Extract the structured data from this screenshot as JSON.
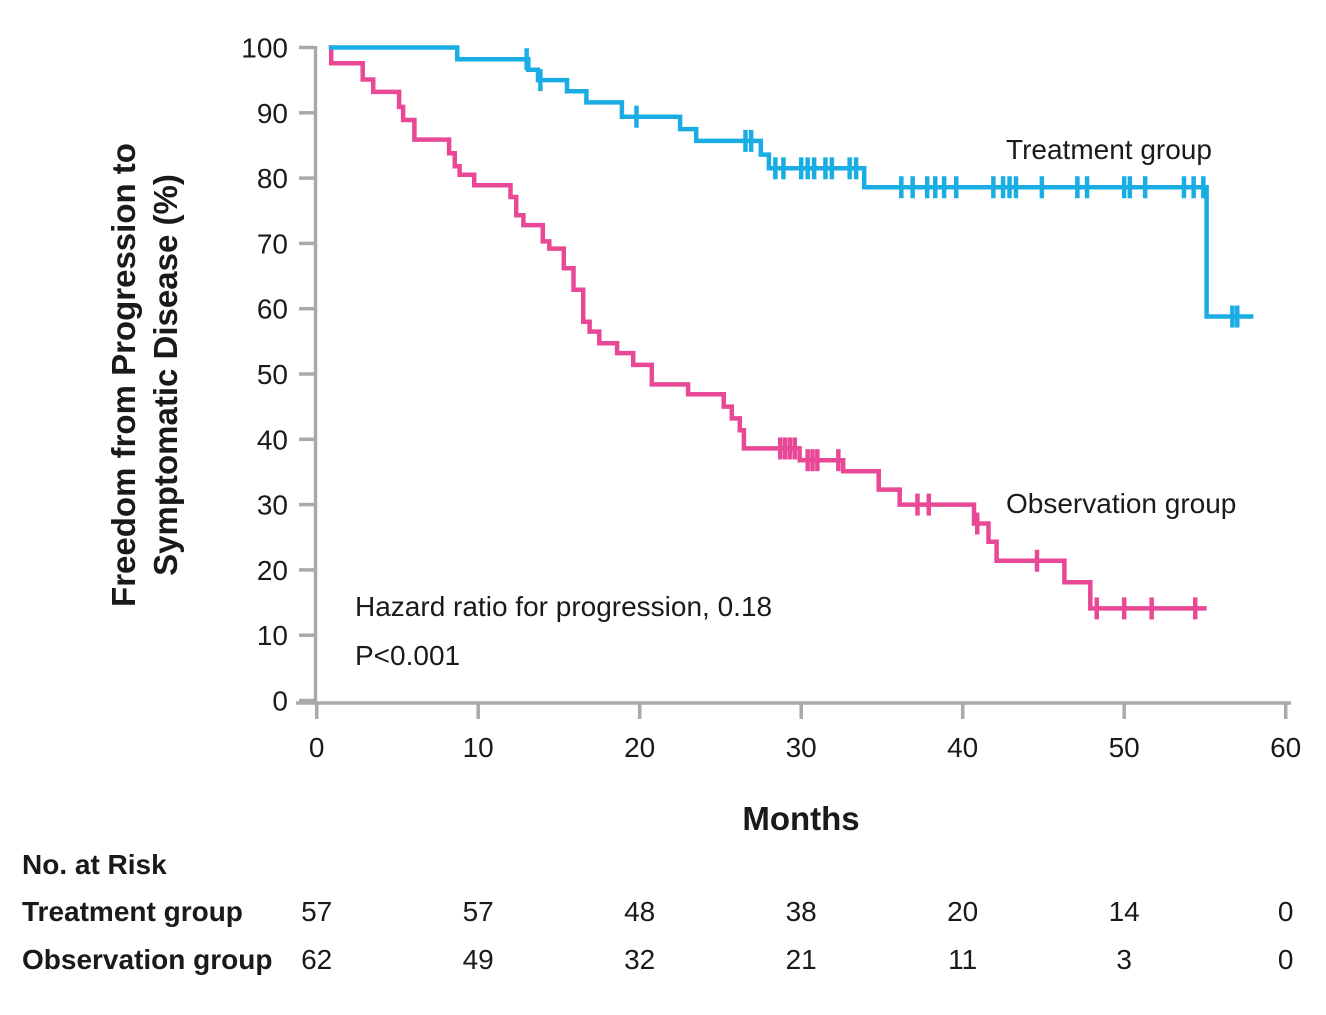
{
  "figure": {
    "y_axis_label": [
      "Freedom from Progression to",
      "Symptomatic Disease (%)"
    ],
    "x_axis_label": "Months",
    "annotations": {
      "hazard_ratio": "Hazard ratio for progression, 0.18",
      "p_value": "P<0.001"
    }
  },
  "chart_data": {
    "type": "line",
    "subtype": "kaplan-meier-step",
    "xlabel": "Months",
    "ylabel": "Freedom from Progression to Symptomatic Disease (%)",
    "xlim": [
      0,
      60
    ],
    "ylim": [
      0,
      100
    ],
    "x_ticks": [
      0,
      10,
      20,
      30,
      40,
      50,
      60
    ],
    "y_ticks": [
      0,
      10,
      20,
      30,
      40,
      50,
      60,
      70,
      80,
      90,
      100
    ],
    "grid": false,
    "legend_position": "inline-labels",
    "series": [
      {
        "name": "Treatment group",
        "color": "#19ade4",
        "points": [
          [
            0.75,
            100
          ],
          [
            8.7,
            98.2
          ],
          [
            13.1,
            96.6
          ],
          [
            13.7,
            95.0
          ],
          [
            15.5,
            93.3
          ],
          [
            16.7,
            91.6
          ],
          [
            18.9,
            89.4
          ],
          [
            22.5,
            87.5
          ],
          [
            23.5,
            85.7
          ],
          [
            27.5,
            83.6
          ],
          [
            28.0,
            81.5
          ],
          [
            33.9,
            78.6
          ],
          [
            55.1,
            58.8
          ]
        ],
        "end_month": 58.0,
        "censor_months": [
          13.0,
          13.85,
          19.8,
          26.55,
          26.9,
          28.4,
          28.9,
          30.0,
          30.4,
          30.8,
          31.5,
          31.9,
          33.0,
          33.4,
          36.2,
          36.9,
          37.8,
          38.3,
          38.85,
          39.6,
          41.9,
          42.5,
          42.9,
          43.3,
          44.9,
          47.1,
          47.7,
          50.0,
          50.35,
          51.3,
          53.7,
          54.3,
          54.9,
          56.7,
          57.0
        ]
      },
      {
        "name": "Observation group",
        "color": "#e84895",
        "points": [
          [
            0.75,
            100
          ],
          [
            0.9,
            97.6
          ],
          [
            2.85,
            95.1
          ],
          [
            3.5,
            93.2
          ],
          [
            5.1,
            90.9
          ],
          [
            5.35,
            88.9
          ],
          [
            6.05,
            85.9
          ],
          [
            8.2,
            83.8
          ],
          [
            8.55,
            81.8
          ],
          [
            8.85,
            80.5
          ],
          [
            9.75,
            78.9
          ],
          [
            12.0,
            77.1
          ],
          [
            12.35,
            74.3
          ],
          [
            12.8,
            72.8
          ],
          [
            14.0,
            70.3
          ],
          [
            14.4,
            69.2
          ],
          [
            15.3,
            66.2
          ],
          [
            15.9,
            62.9
          ],
          [
            16.5,
            58.0
          ],
          [
            16.9,
            56.5
          ],
          [
            17.5,
            54.7
          ],
          [
            18.6,
            53.2
          ],
          [
            19.6,
            51.4
          ],
          [
            20.75,
            48.4
          ],
          [
            23.0,
            46.9
          ],
          [
            25.2,
            45.0
          ],
          [
            25.7,
            43.2
          ],
          [
            26.2,
            41.4
          ],
          [
            26.45,
            38.6
          ],
          [
            29.9,
            36.8
          ],
          [
            32.6,
            35.1
          ],
          [
            34.8,
            32.3
          ],
          [
            36.1,
            30.0
          ],
          [
            40.7,
            27.1
          ],
          [
            41.6,
            24.3
          ],
          [
            42.1,
            21.4
          ],
          [
            46.3,
            18.1
          ],
          [
            47.9,
            14.1
          ]
        ],
        "end_month": 55.1,
        "censor_months": [
          28.7,
          29.0,
          29.3,
          29.6,
          30.4,
          30.7,
          31.0,
          32.3,
          37.2,
          37.9,
          40.9,
          44.6,
          48.3,
          50.0,
          51.7,
          54.4
        ]
      }
    ]
  },
  "risk_table": {
    "title": "No. at Risk",
    "months": [
      0,
      10,
      20,
      30,
      40,
      50,
      60
    ],
    "rows": [
      {
        "label": "Treatment group",
        "values": [
          "57",
          "57",
          "48",
          "38",
          "20",
          "14",
          "0"
        ]
      },
      {
        "label": "Observation group",
        "values": [
          "62",
          "49",
          "32",
          "21",
          "11",
          "3",
          "0"
        ]
      }
    ]
  },
  "colors": {
    "axis": "#a8a9ab",
    "text": "#1a1a1c",
    "treatment": "#19ade4",
    "observation": "#e84895"
  }
}
